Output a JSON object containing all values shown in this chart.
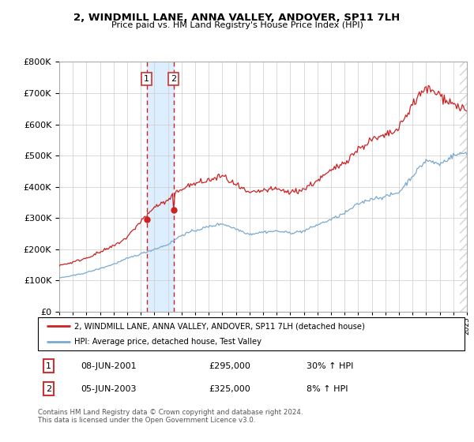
{
  "title": "2, WINDMILL LANE, ANNA VALLEY, ANDOVER, SP11 7LH",
  "subtitle": "Price paid vs. HM Land Registry's House Price Index (HPI)",
  "legend_line1": "2, WINDMILL LANE, ANNA VALLEY, ANDOVER, SP11 7LH (detached house)",
  "legend_line2": "HPI: Average price, detached house, Test Valley",
  "sale1_label": "1",
  "sale1_date": "08-JUN-2001",
  "sale1_price": "£295,000",
  "sale1_hpi": "30% ↑ HPI",
  "sale2_label": "2",
  "sale2_date": "05-JUN-2003",
  "sale2_price": "£325,000",
  "sale2_hpi": "8% ↑ HPI",
  "footnote": "Contains HM Land Registry data © Crown copyright and database right 2024.\nThis data is licensed under the Open Government Licence v3.0.",
  "sale1_year": 2001.44,
  "sale2_year": 2003.42,
  "sale1_value": 295000,
  "sale2_value": 325000,
  "red_color": "#cc2222",
  "blue_color": "#7aaad0",
  "shade_color": "#ddeeff",
  "ylim": [
    0,
    800000
  ],
  "xlim_start": 1995,
  "xlim_end": 2025
}
